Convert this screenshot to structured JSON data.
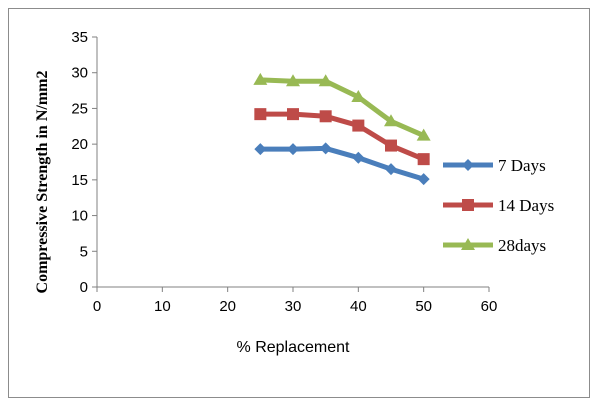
{
  "chart_data": {
    "type": "line",
    "title": "",
    "xlabel": "% Replacement",
    "ylabel": "Compressive Strength in N/mm2",
    "xlim": [
      0,
      60
    ],
    "ylim": [
      0,
      35
    ],
    "xticks": [
      "0",
      "10",
      "20",
      "30",
      "40",
      "50",
      "60"
    ],
    "yticks": [
      "0",
      "5",
      "10",
      "15",
      "20",
      "25",
      "30",
      "35"
    ],
    "grid": false,
    "legend_position": "right",
    "x": [
      25,
      30,
      35,
      40,
      45,
      50
    ],
    "series": [
      {
        "name": "7 Days",
        "values": [
          19.3,
          19.3,
          19.4,
          18.1,
          16.5,
          15.1
        ],
        "color": "#4a7ebb",
        "marker": "diamond"
      },
      {
        "name": "14 Days",
        "values": [
          24.2,
          24.2,
          23.9,
          22.6,
          19.8,
          17.9
        ],
        "color": "#be4b48",
        "marker": "square"
      },
      {
        "name": "28days",
        "values": [
          29.0,
          28.8,
          28.8,
          26.6,
          23.2,
          21.2
        ],
        "color": "#98b954",
        "marker": "triangle"
      }
    ]
  }
}
